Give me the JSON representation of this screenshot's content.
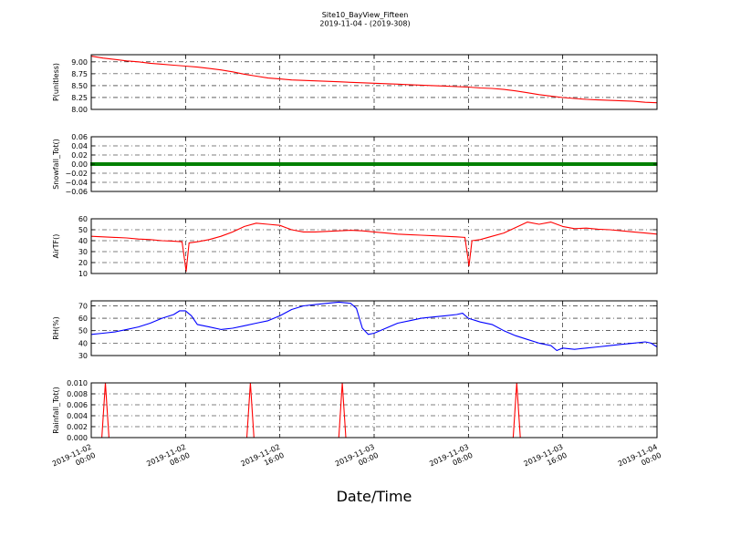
{
  "title": "Site10_BayView_Fifteen",
  "subtitle": "2019-11-04 - (2019-308)",
  "xlabel": "Date/Time",
  "colors": {
    "red": "#ff0000",
    "green": "#008000",
    "blue": "#0000ff",
    "grid": "#000000"
  },
  "chart_data": [
    {
      "type": "line",
      "ylabel": "P(unitless)",
      "ylim": [
        8.0,
        9.15
      ],
      "yticks": [
        "9.00",
        "8.75",
        "8.50",
        "8.25",
        "8.00"
      ],
      "ytick_values": [
        9.0,
        8.75,
        8.5,
        8.25,
        8.0
      ],
      "x_hours": [
        0,
        1,
        2,
        3,
        4,
        5,
        6,
        7,
        8,
        9,
        10,
        11,
        12,
        13,
        14,
        15,
        16,
        17,
        18,
        19,
        20,
        21,
        22,
        23,
        24,
        25,
        26,
        27,
        28,
        29,
        30,
        31,
        32,
        33,
        34,
        35,
        36,
        37,
        38,
        39,
        40,
        41,
        42,
        43,
        44,
        45,
        46,
        47,
        48
      ],
      "series": [
        {
          "color": "#ff0000",
          "values": [
            9.12,
            9.08,
            9.05,
            9.02,
            9.0,
            8.97,
            8.95,
            8.93,
            8.91,
            8.89,
            8.86,
            8.83,
            8.79,
            8.74,
            8.7,
            8.66,
            8.64,
            8.62,
            8.61,
            8.6,
            8.59,
            8.58,
            8.57,
            8.56,
            8.55,
            8.54,
            8.53,
            8.52,
            8.51,
            8.5,
            8.49,
            8.48,
            8.47,
            8.45,
            8.44,
            8.42,
            8.39,
            8.35,
            8.31,
            8.28,
            8.25,
            8.23,
            8.21,
            8.2,
            8.19,
            8.18,
            8.17,
            8.15,
            8.14
          ]
        }
      ],
      "grid": true
    },
    {
      "type": "scatter",
      "ylabel": "Snowfall_Tot()",
      "ylim": [
        -0.06,
        0.06
      ],
      "yticks": [
        "0.06",
        "0.04",
        "0.02",
        "0.00",
        "−0.02",
        "−0.04",
        "−0.06"
      ],
      "ytick_values": [
        0.06,
        0.04,
        0.02,
        0.0,
        -0.02,
        -0.04,
        -0.06
      ],
      "series": [
        {
          "color": "#008000",
          "value": 0.0,
          "x_range_hours": [
            0,
            48
          ]
        }
      ],
      "grid": true
    },
    {
      "type": "line",
      "ylabel": "AirTF()",
      "ylim": [
        10,
        60
      ],
      "yticks": [
        "60",
        "50",
        "40",
        "30",
        "20",
        "10"
      ],
      "ytick_values": [
        60,
        50,
        40,
        30,
        20,
        10
      ],
      "x_hours": [
        0,
        1,
        2,
        3,
        4,
        5,
        6,
        7,
        7.7,
        8.05,
        8.3,
        9,
        10,
        11,
        12,
        13,
        14,
        15,
        16,
        16.5,
        17,
        18,
        19,
        20,
        21,
        22,
        23,
        24,
        25,
        26,
        27,
        28,
        29,
        30,
        31,
        31.7,
        32.05,
        32.3,
        33,
        34,
        35,
        36,
        37,
        38,
        39,
        40,
        41,
        42,
        43,
        44,
        45,
        46,
        47,
        48
      ],
      "series": [
        {
          "color": "#ff0000",
          "values": [
            44,
            43.5,
            43,
            42.5,
            41.5,
            41,
            40,
            39.5,
            39,
            12,
            38,
            39,
            41,
            44,
            48,
            53,
            56,
            55,
            54,
            52,
            50,
            48,
            48,
            48.5,
            49,
            49.5,
            49,
            48,
            47,
            46,
            45.5,
            45,
            44.5,
            44,
            43.5,
            43,
            17,
            40,
            41,
            44,
            47,
            52,
            57,
            55,
            57,
            53,
            51,
            51.5,
            50.5,
            50,
            49,
            48,
            47,
            46
          ]
        }
      ],
      "grid": true
    },
    {
      "type": "line",
      "ylabel": "RH(%)",
      "ylim": [
        30,
        74
      ],
      "yticks": [
        "70",
        "60",
        "50",
        "40",
        "30"
      ],
      "ytick_values": [
        70,
        60,
        50,
        40,
        30
      ],
      "x_hours": [
        0,
        1,
        2,
        3,
        4,
        5,
        6,
        7,
        7.5,
        8,
        8.5,
        9,
        10,
        11,
        12,
        13,
        14,
        15,
        16,
        17,
        18,
        19,
        20,
        21,
        22,
        22.5,
        23,
        23.5,
        24,
        25,
        26,
        27,
        28,
        29,
        30,
        31,
        31.5,
        32,
        33,
        34,
        35,
        36,
        37,
        38,
        39,
        39.5,
        40,
        41,
        42,
        43,
        44,
        45,
        46,
        47,
        47.5,
        48
      ],
      "series": [
        {
          "color": "#0000ff",
          "values": [
            47,
            48,
            49,
            51,
            53,
            56,
            60,
            63,
            66,
            66,
            62,
            55,
            53,
            51,
            52,
            54,
            56,
            58,
            62,
            67,
            70,
            71,
            72,
            73,
            72,
            68,
            52,
            47,
            48,
            52,
            56,
            58,
            60,
            61,
            62,
            63,
            64,
            60,
            57,
            55,
            50,
            46,
            43,
            40,
            38,
            34,
            36,
            35,
            36,
            37,
            38,
            39,
            40,
            41,
            40,
            37
          ]
        }
      ],
      "grid": true
    },
    {
      "type": "line",
      "ylabel": "Rainfall_Tot()",
      "ylim": [
        0,
        0.01
      ],
      "yticks": [
        "0.010",
        "0.008",
        "0.006",
        "0.004",
        "0.002",
        "0.000"
      ],
      "ytick_values": [
        0.01,
        0.008,
        0.006,
        0.004,
        0.002,
        0.0
      ],
      "x_hours": [
        0,
        0.9,
        1.2,
        1.5,
        13.2,
        13.5,
        13.8,
        21.0,
        21.3,
        21.6,
        35.8,
        36.1,
        36.4,
        48
      ],
      "series": [
        {
          "color": "#ff0000",
          "values": [
            0,
            0,
            0.01,
            0,
            0,
            0.01,
            0,
            0,
            0.01,
            0,
            0,
            0.01,
            0,
            0
          ]
        }
      ],
      "grid": true
    }
  ],
  "x_axis": {
    "range_hours": [
      0,
      48
    ],
    "tick_hours": [
      0,
      8,
      16,
      24,
      32,
      40,
      48
    ],
    "tick_labels": [
      [
        "2019-11-02",
        "00:00"
      ],
      [
        "2019-11-02",
        "08:00"
      ],
      [
        "2019-11-02",
        "16:00"
      ],
      [
        "2019-11-03",
        "00:00"
      ],
      [
        "2019-11-03",
        "08:00"
      ],
      [
        "2019-11-03",
        "16:00"
      ],
      [
        "2019-11-04",
        "00:00"
      ]
    ]
  }
}
